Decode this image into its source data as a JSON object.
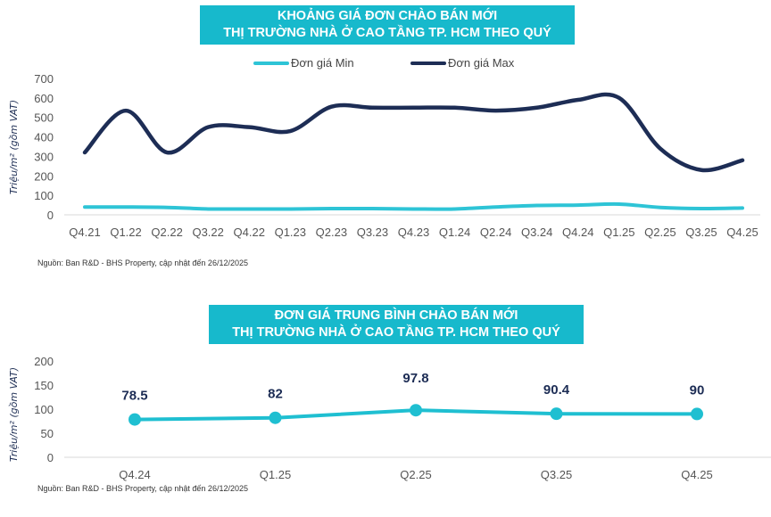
{
  "chart_data": [
    {
      "type": "line",
      "title": "KHOẢNG GIÁ ĐƠN CHÀO BÁN MỚI\nTHỊ TRƯỜNG NHÀ Ở CAO TẦNG TP. HCM THEO QUÝ",
      "title_lines": [
        "KHOẢNG GIÁ ĐƠN CHÀO BÁN MỚI",
        "THỊ TRƯỜNG NHÀ Ở CAO TẦNG TP. HCM THEO QUÝ"
      ],
      "ylabel": "Triệu/m² (gồm VAT)",
      "xlabel": "",
      "ylim": [
        0,
        700
      ],
      "yticks": [
        "0",
        "100",
        "200",
        "300",
        "400",
        "500",
        "600",
        "700"
      ],
      "categories": [
        "Q4.21",
        "Q1.22",
        "Q2.22",
        "Q3.22",
        "Q4.22",
        "Q1.23",
        "Q2.23",
        "Q3.23",
        "Q4.23",
        "Q1.24",
        "Q2.24",
        "Q3.24",
        "Q4.24",
        "Q1.25",
        "Q2.25",
        "Q3.25",
        "Q4.25"
      ],
      "series": [
        {
          "name": "Đơn giá Min",
          "color": "#2ec4d6",
          "values": [
            40,
            40,
            38,
            30,
            30,
            30,
            32,
            32,
            30,
            30,
            40,
            48,
            50,
            55,
            38,
            32,
            35
          ]
        },
        {
          "name": "Đơn giá Max",
          "color": "#1d2d55",
          "values": [
            320,
            535,
            320,
            450,
            450,
            430,
            555,
            550,
            550,
            550,
            535,
            550,
            590,
            600,
            340,
            230,
            280
          ]
        }
      ],
      "legend": "top-center",
      "source": "Nguồn: Ban R&D - BHS Property, cập nhật đến 26/12/2025"
    },
    {
      "type": "line",
      "title_lines": [
        "ĐƠN GIÁ TRUNG BÌNH CHÀO BÁN MỚI",
        "THỊ TRƯỜNG NHÀ Ở CAO TẦNG TP. HCM THEO QUÝ"
      ],
      "ylabel": "Triệu/m² (gồm VAT)",
      "ylim": [
        0,
        200
      ],
      "yticks": [
        "0",
        "50",
        "100",
        "150",
        "200"
      ],
      "categories": [
        "Q4.24",
        "Q1.25",
        "Q2.25",
        "Q3.25",
        "Q4.25"
      ],
      "series": [
        {
          "name": "Đơn giá trung bình",
          "color": "#1fbfd1",
          "values": [
            78.5,
            82,
            97.8,
            90.4,
            90
          ]
        }
      ],
      "data_labels": [
        "78.5",
        "82",
        "97.8",
        "90.4",
        "90"
      ],
      "source": "Nguồn: Ban R&D - BHS Property, cập nhật đến 26/12/2025"
    }
  ]
}
